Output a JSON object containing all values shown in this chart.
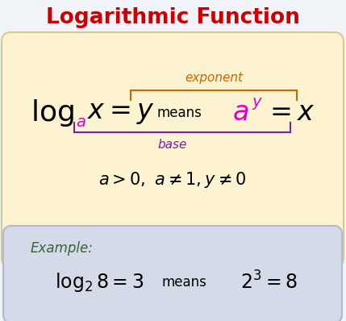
{
  "title": "Logarithmic Function",
  "title_color": "#cc0000",
  "bg_color": "#f0f4f8",
  "yellow_box_color": "#fdf3d0",
  "yellow_box_edge": "#d8c890",
  "blue_box_color": "#d4dae8",
  "blue_box_edge": "#b0bace",
  "exponent_label": "exponent",
  "exponent_color": "#cc6600",
  "base_label": "base",
  "base_color": "#7722aa",
  "a_color": "#dd00cc",
  "example_label_color": "#336633"
}
